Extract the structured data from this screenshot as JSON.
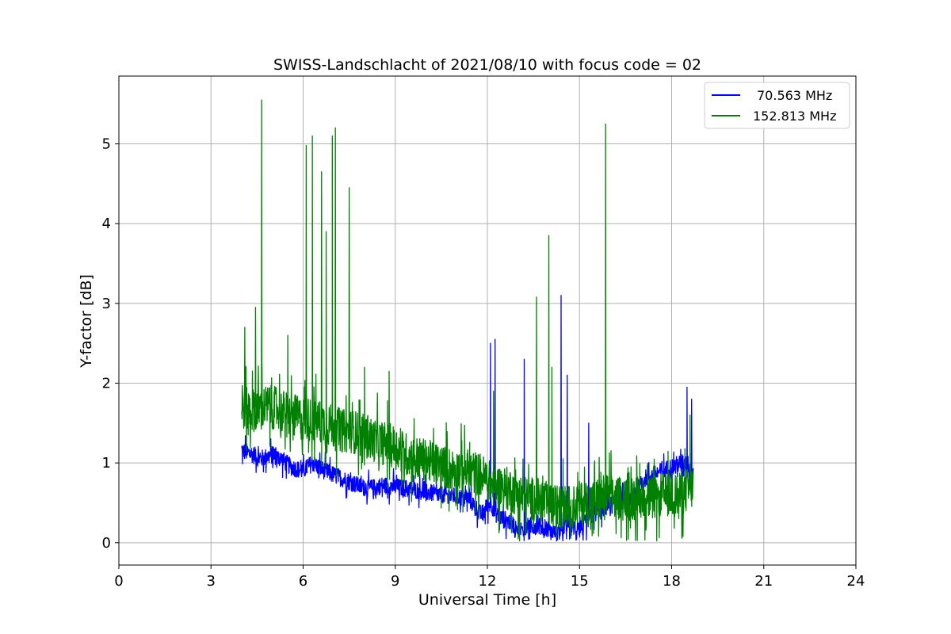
{
  "chart_data": {
    "type": "line",
    "title": "SWISS-Landschlacht of 2021/08/10 with focus code = 02",
    "xlabel": "Universal Time [h]",
    "ylabel": "Y-factor [dB]",
    "xlim": [
      0,
      24
    ],
    "ylim": [
      -0.28,
      5.85
    ],
    "xticks": [
      0,
      3,
      6,
      9,
      12,
      15,
      18,
      21,
      24
    ],
    "yticks": [
      0,
      1,
      2,
      3,
      4,
      5
    ],
    "grid": true,
    "legend_position": "top-right",
    "series": [
      {
        "name": "70.563 MHz",
        "color": "#0000ff",
        "x": [
          4.0,
          4.3,
          4.6,
          5.0,
          5.3,
          5.6,
          6.0,
          6.3,
          6.7,
          7.0,
          7.3,
          7.6,
          7.9,
          8.2,
          8.6,
          9.0,
          9.4,
          9.8,
          10.2,
          10.6,
          11.0,
          11.4,
          11.8,
          12.1,
          12.3,
          12.5,
          12.8,
          13.0,
          13.3,
          13.6,
          13.9,
          14.1,
          14.4,
          14.6,
          14.8,
          15.0,
          15.3,
          15.6,
          15.9,
          16.2,
          16.5,
          16.8,
          17.1,
          17.4,
          17.7,
          18.0,
          18.3,
          18.5,
          18.7
        ],
        "y": [
          1.15,
          1.12,
          1.05,
          1.1,
          1.05,
          0.95,
          0.9,
          1.0,
          0.9,
          0.85,
          0.8,
          0.75,
          0.7,
          0.68,
          0.72,
          0.7,
          0.68,
          0.65,
          0.62,
          0.6,
          0.58,
          0.55,
          0.35,
          0.5,
          0.35,
          0.3,
          0.25,
          0.15,
          0.2,
          0.22,
          0.18,
          0.1,
          0.15,
          0.25,
          0.2,
          0.15,
          0.3,
          0.4,
          0.45,
          0.5,
          0.55,
          0.6,
          0.8,
          0.85,
          0.9,
          0.95,
          1.0,
          1.0,
          0.9
        ],
        "spikes": [
          [
            12.1,
            2.5
          ],
          [
            12.25,
            2.55
          ],
          [
            13.2,
            2.3
          ],
          [
            14.4,
            3.1
          ],
          [
            14.6,
            2.1
          ],
          [
            15.3,
            1.5
          ],
          [
            18.5,
            1.95
          ],
          [
            18.65,
            1.8
          ]
        ]
      },
      {
        "name": "152.813 MHz",
        "color": "#008000",
        "x": [
          4.0,
          4.3,
          4.6,
          5.0,
          5.3,
          5.6,
          6.0,
          6.3,
          6.7,
          7.0,
          7.3,
          7.6,
          7.9,
          8.2,
          8.6,
          9.0,
          9.4,
          9.8,
          10.2,
          10.6,
          11.0,
          11.4,
          11.8,
          12.1,
          12.3,
          12.5,
          12.8,
          13.0,
          13.3,
          13.6,
          13.9,
          14.1,
          14.4,
          14.6,
          14.8,
          15.0,
          15.3,
          15.6,
          15.9,
          16.2,
          16.5,
          16.8,
          17.1,
          17.4,
          17.7,
          18.0,
          18.3,
          18.5,
          18.7
        ],
        "y": [
          1.7,
          1.65,
          1.7,
          1.7,
          1.65,
          1.6,
          1.55,
          1.55,
          1.5,
          1.45,
          1.4,
          1.4,
          1.35,
          1.3,
          1.25,
          1.2,
          1.1,
          1.05,
          1.0,
          0.95,
          0.9,
          0.9,
          0.85,
          0.75,
          0.7,
          0.7,
          0.65,
          0.6,
          0.55,
          0.55,
          0.5,
          0.45,
          0.45,
          0.45,
          0.45,
          0.5,
          0.5,
          0.55,
          0.6,
          0.55,
          0.55,
          0.55,
          0.55,
          0.55,
          0.6,
          0.6,
          0.6,
          0.65,
          0.7
        ],
        "spikes": [
          [
            4.1,
            2.7
          ],
          [
            4.45,
            2.95
          ],
          [
            4.65,
            5.55
          ],
          [
            5.5,
            2.6
          ],
          [
            6.1,
            4.98
          ],
          [
            6.3,
            5.1
          ],
          [
            6.6,
            4.65
          ],
          [
            6.75,
            3.9
          ],
          [
            6.95,
            5.1
          ],
          [
            7.05,
            5.2
          ],
          [
            7.5,
            4.45
          ],
          [
            8.0,
            2.2
          ],
          [
            8.8,
            2.15
          ],
          [
            12.2,
            1.9
          ],
          [
            13.6,
            3.08
          ],
          [
            14.0,
            3.85
          ],
          [
            14.1,
            2.2
          ],
          [
            15.85,
            5.25
          ],
          [
            18.6,
            1.6
          ]
        ]
      }
    ]
  }
}
